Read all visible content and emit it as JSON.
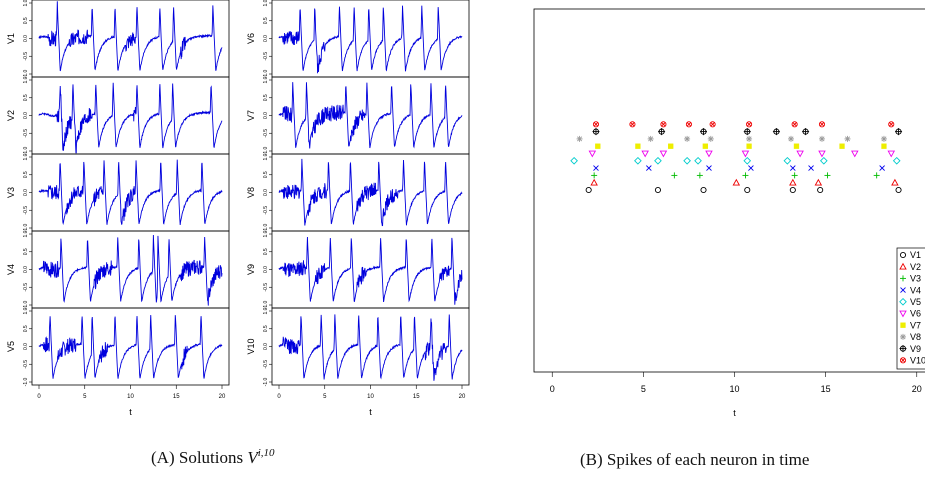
{
  "panel_a": {
    "caption": {
      "prefix": "(A)",
      "text": "Solutions",
      "math": "V",
      "superscript": "i,10"
    },
    "xlabel": "t",
    "x_ticks": [
      "0",
      "5",
      "10",
      "15",
      "20"
    ],
    "y_ticks": [
      "-1.0",
      "-0.5",
      "0.0",
      "0.5",
      "1.0"
    ],
    "left_labels": [
      "V1",
      "V2",
      "V3",
      "V4",
      "V5"
    ],
    "right_labels": [
      "V6",
      "V7",
      "V8",
      "V9",
      "V10"
    ],
    "line_color": "#0000dd"
  },
  "panel_b": {
    "caption": {
      "prefix": "(B)",
      "text": "Spikes of each neuron in time"
    },
    "xlabel": "t",
    "x_ticks": [
      "0",
      "5",
      "10",
      "15",
      "20"
    ],
    "legend": [
      "V1",
      "V2",
      "V3",
      "V4",
      "V5",
      "V6",
      "V7",
      "V8",
      "V9",
      "V10"
    ]
  },
  "chart_data": [
    {
      "type": "line",
      "description_panel": "A",
      "x_range": [
        0,
        20
      ],
      "y_range": [
        -1.0,
        1.0
      ],
      "xlabel": "t",
      "series": [
        {
          "name": "V1",
          "spikes": [
            2.0,
            5.8,
            8.3,
            10.7,
            13.2,
            14.7,
            19.0
          ],
          "noise": [
            [
              1.0,
              2.0
            ],
            [
              3.3,
              5.4
            ],
            [
              9.5,
              10.5
            ],
            [
              15.5,
              16.0
            ]
          ]
        },
        {
          "name": "V2",
          "spikes": [
            2.3,
            3.7,
            6.2,
            8.1,
            10.7,
            13.2,
            14.6,
            18.8
          ],
          "noise": [
            [
              2.0,
              3.5
            ],
            [
              3.9,
              5.8
            ],
            [
              10.3,
              10.6
            ]
          ]
        },
        {
          "name": "V3",
          "spikes": [
            2.3,
            4.9,
            7.1,
            8.7,
            10.6,
            13.3,
            15.1,
            17.8
          ],
          "noise": [
            [
              1.0,
              2.2
            ],
            [
              3.0,
              4.8
            ],
            [
              6.0,
              7.0
            ],
            [
              8.9,
              10.4
            ]
          ]
        },
        {
          "name": "V4",
          "spikes": [
            2.4,
            5.3,
            8.6,
            10.9,
            12.5,
            13.0,
            14.2,
            18.1
          ],
          "noise": [
            [
              0.5,
              2.2
            ],
            [
              6.0,
              8.0
            ],
            [
              15.5,
              17.8
            ],
            [
              18.5,
              20.0
            ]
          ]
        },
        {
          "name": "V5",
          "spikes": [
            1.2,
            4.7,
            5.8,
            8.3,
            10.7,
            12.2,
            14.9,
            17.7
          ],
          "noise": [
            [
              0.5,
              1.2
            ],
            [
              2.0,
              4.0
            ],
            [
              6.5,
              7.5
            ],
            [
              15.6,
              16.2
            ]
          ]
        },
        {
          "name": "V6",
          "spikes": [
            2.3,
            3.9,
            6.6,
            8.2,
            9.8,
            11.4,
            13.5,
            15.6,
            17.4
          ],
          "noise": [
            [
              0.4,
              2.2
            ],
            [
              4.0,
              5.0
            ]
          ]
        },
        {
          "name": "V7",
          "spikes": [
            1.5,
            3.0,
            7.3,
            9.6,
            12.3,
            14.4,
            16.6,
            18.2
          ],
          "noise": [
            [
              0.4,
              1.4
            ],
            [
              3.2,
              7.0
            ],
            [
              7.8,
              9.4
            ]
          ]
        },
        {
          "name": "V8",
          "spikes": [
            2.5,
            5.4,
            7.8,
            10.9,
            13.6,
            15.9,
            18.2
          ],
          "noise": [
            [
              0.4,
              2.3
            ],
            [
              3.2,
              5.2
            ],
            [
              8.5,
              10.6
            ],
            [
              11.2,
              13.0
            ]
          ]
        },
        {
          "name": "V9",
          "spikes": [
            3.1,
            5.6,
            7.9,
            11.1,
            13.9,
            16.7,
            18.9
          ],
          "noise": [
            [
              0.4,
              2.9
            ],
            [
              4.0,
              5.0
            ],
            [
              8.5,
              9.5
            ],
            [
              17.5,
              18.6
            ],
            [
              19.2,
              20.0
            ]
          ]
        },
        {
          "name": "V10",
          "spikes": [
            2.4,
            4.6,
            6.1,
            8.7,
            10.8,
            13.3,
            14.8,
            16.6,
            18.6
          ],
          "noise": [
            [
              0.4,
              2.2
            ],
            [
              16.0,
              18.3
            ]
          ]
        }
      ]
    },
    {
      "type": "scatter",
      "description_panel": "B",
      "x_range": [
        -1,
        21
      ],
      "xlabel": "t",
      "series": [
        {
          "name": "V1",
          "marker": "circle",
          "color": "#000000",
          "level": 1,
          "x": [
            2.0,
            5.8,
            8.3,
            10.7,
            13.2,
            14.7,
            19.0
          ]
        },
        {
          "name": "V2",
          "marker": "triangle-up",
          "color": "#ee0000",
          "level": 2,
          "x": [
            2.3,
            10.1,
            13.2,
            14.6,
            18.8
          ]
        },
        {
          "name": "V3",
          "marker": "plus",
          "color": "#00bb00",
          "level": 3,
          "x": [
            2.3,
            6.7,
            8.1,
            10.6,
            13.3,
            15.1,
            17.8
          ]
        },
        {
          "name": "V4",
          "marker": "x",
          "color": "#0000ee",
          "level": 4,
          "x": [
            2.4,
            5.3,
            8.6,
            10.9,
            13.2,
            14.2,
            18.1
          ]
        },
        {
          "name": "V5",
          "marker": "diamond",
          "color": "#00cccc",
          "level": 5,
          "x": [
            1.2,
            4.7,
            5.8,
            7.4,
            8.0,
            10.7,
            12.9,
            14.9,
            18.9
          ]
        },
        {
          "name": "V6",
          "marker": "triangle-down",
          "color": "#ee00ee",
          "level": 6,
          "x": [
            2.2,
            5.1,
            6.1,
            8.6,
            10.6,
            13.6,
            14.8,
            16.6,
            18.6
          ]
        },
        {
          "name": "V7",
          "marker": "square",
          "color": "#eeee00",
          "level": 7,
          "x": [
            2.5,
            4.7,
            6.5,
            8.4,
            10.8,
            13.4,
            15.9,
            18.2
          ]
        },
        {
          "name": "V8",
          "marker": "asterisk",
          "color": "#999999",
          "level": 8,
          "x": [
            1.5,
            5.4,
            7.4,
            8.7,
            10.8,
            13.1,
            14.8,
            16.2,
            18.2
          ]
        },
        {
          "name": "V9",
          "marker": "circle-plus",
          "color": "#000000",
          "level": 9,
          "x": [
            2.4,
            6.0,
            8.3,
            10.7,
            12.3,
            13.9,
            19.0
          ]
        },
        {
          "name": "V10",
          "marker": "circle-cross",
          "color": "#ee0000",
          "level": 10,
          "x": [
            2.4,
            4.4,
            6.1,
            7.5,
            8.8,
            10.8,
            13.3,
            14.8,
            18.6
          ]
        }
      ]
    }
  ]
}
